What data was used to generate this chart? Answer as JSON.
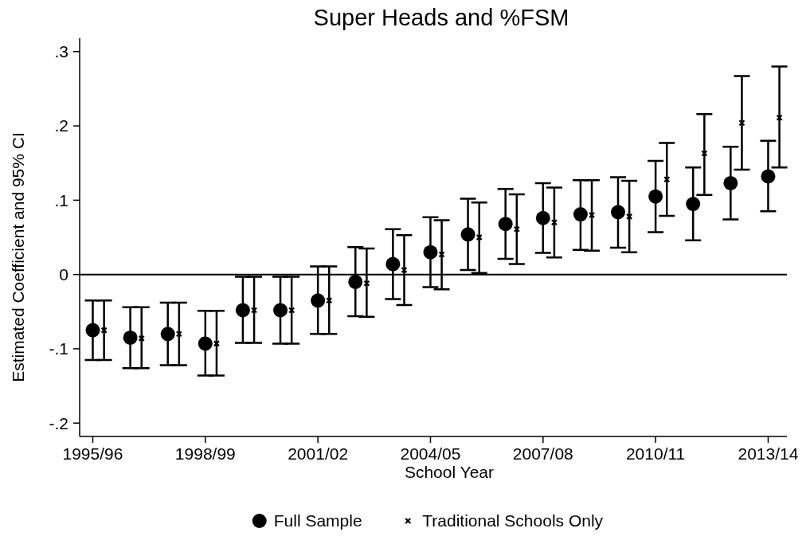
{
  "chart_data": {
    "type": "scatter",
    "title": "Super Heads and %FSM",
    "xlabel": "School Year",
    "ylabel": "Estimated Coefficient and 95% CI",
    "categories": [
      "1995/96",
      null,
      null,
      "1998/99",
      null,
      null,
      "2001/02",
      null,
      null,
      "2004/05",
      null,
      null,
      "2007/08",
      null,
      null,
      "2010/11",
      null,
      null,
      "2013/14"
    ],
    "ylim": [
      -0.218,
      0.318
    ],
    "yticks": [
      {
        "value": -0.2,
        "label": "-.2"
      },
      {
        "value": -0.1,
        "label": "-.1"
      },
      0,
      {
        "value": 0.1,
        "label": ".1"
      },
      {
        "value": 0.2,
        "label": ".2"
      },
      {
        "value": 0.3,
        "label": ".3"
      }
    ],
    "grid": false,
    "legend": "bottom",
    "ref_lines": [
      {
        "axis": "y",
        "value": 0,
        "color": "#000000"
      }
    ],
    "series": [
      {
        "name": "Full Sample",
        "color": "#000000",
        "marker": "circle",
        "values": [
          -0.075,
          -0.085,
          -0.08,
          -0.093,
          -0.048,
          -0.048,
          -0.035,
          -0.01,
          0.014,
          0.03,
          0.054,
          0.068,
          0.076,
          0.081,
          0.084,
          0.105,
          0.095,
          0.123,
          0.132
        ],
        "errors": [
          [
            -0.115,
            -0.035
          ],
          [
            -0.126,
            -0.044
          ],
          [
            -0.122,
            -0.038
          ],
          [
            -0.136,
            -0.049
          ],
          [
            -0.092,
            -0.003
          ],
          [
            -0.093,
            -0.003
          ],
          [
            -0.08,
            0.011
          ],
          [
            -0.056,
            0.037
          ],
          [
            -0.033,
            0.061
          ],
          [
            -0.017,
            0.077
          ],
          [
            0.006,
            0.102
          ],
          [
            0.021,
            0.115
          ],
          [
            0.029,
            0.123
          ],
          [
            0.033,
            0.127
          ],
          [
            0.036,
            0.131
          ],
          [
            0.057,
            0.153
          ],
          [
            0.046,
            0.144
          ],
          [
            0.074,
            0.172
          ],
          [
            0.085,
            0.18
          ]
        ]
      },
      {
        "name": "Traditional Schools Only",
        "color": "#000000",
        "marker": "cross",
        "values": [
          -0.075,
          -0.086,
          -0.08,
          -0.093,
          -0.048,
          -0.048,
          -0.035,
          -0.012,
          0.006,
          0.027,
          0.05,
          0.061,
          0.07,
          0.08,
          0.078,
          0.128,
          0.163,
          0.204,
          0.211
        ],
        "errors": [
          [
            -0.115,
            -0.035
          ],
          [
            -0.126,
            -0.044
          ],
          [
            -0.122,
            -0.038
          ],
          [
            -0.136,
            -0.049
          ],
          [
            -0.092,
            -0.003
          ],
          [
            -0.093,
            -0.003
          ],
          [
            -0.08,
            0.011
          ],
          [
            -0.057,
            0.035
          ],
          [
            -0.041,
            0.053
          ],
          [
            -0.02,
            0.073
          ],
          [
            0.002,
            0.097
          ],
          [
            0.014,
            0.108
          ],
          [
            0.023,
            0.117
          ],
          [
            0.032,
            0.127
          ],
          [
            0.03,
            0.126
          ],
          [
            0.079,
            0.177
          ],
          [
            0.107,
            0.216
          ],
          [
            0.141,
            0.267
          ],
          [
            0.144,
            0.28
          ]
        ]
      }
    ]
  }
}
